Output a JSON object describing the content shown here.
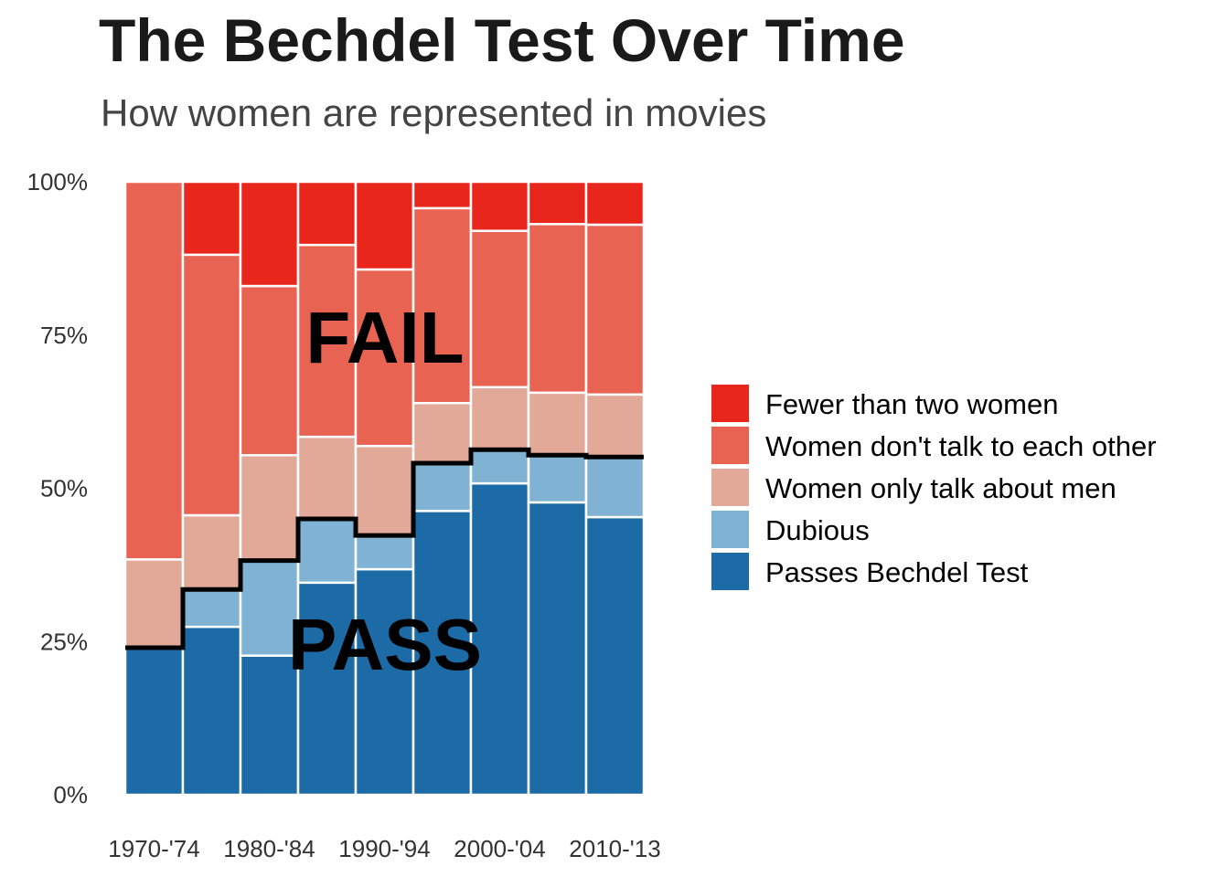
{
  "chart_data": {
    "type": "bar",
    "stacked": true,
    "title": "The Bechdel Test Over Time",
    "subtitle": "How women are represented in movies",
    "xlabel": "",
    "ylabel": "",
    "ylim": [
      0,
      100
    ],
    "y_ticks": [
      "0%",
      "25%",
      "50%",
      "75%",
      "100%"
    ],
    "categories": [
      "1970-'74",
      "",
      "1980-'84",
      "",
      "1990-'94",
      "",
      "2000-'04",
      "",
      "2010-'13"
    ],
    "series": [
      {
        "name": "Passes Bechdel Test",
        "color": "#1c6aa6",
        "values": [
          24.0,
          27.4,
          22.7,
          34.6,
          36.8,
          46.3,
          50.8,
          47.7,
          45.3
        ]
      },
      {
        "name": "Dubious",
        "color": "#7fb2d3",
        "values": [
          0.0,
          6.1,
          15.5,
          10.4,
          5.5,
          7.8,
          5.5,
          7.7,
          9.8
        ]
      },
      {
        "name": "Women only talk about men",
        "color": "#e2a898",
        "values": [
          14.4,
          12.1,
          17.2,
          13.4,
          14.6,
          9.8,
          10.2,
          10.2,
          10.2
        ]
      },
      {
        "name": "Women don't talk to each other",
        "color": "#e86352",
        "values": [
          61.6,
          42.5,
          27.6,
          31.3,
          28.8,
          31.8,
          25.5,
          27.5,
          27.7
        ]
      },
      {
        "name": "Fewer than two women",
        "color": "#e8261c",
        "values": [
          0.0,
          11.9,
          17.0,
          10.3,
          14.3,
          4.3,
          8.0,
          6.9,
          7.0
        ]
      }
    ],
    "legend_order": [
      4,
      3,
      2,
      1,
      0
    ],
    "legend_position": "right",
    "annotations": [
      "FAIL",
      "PASS"
    ],
    "step_line": "Passes + Dubious threshold"
  }
}
